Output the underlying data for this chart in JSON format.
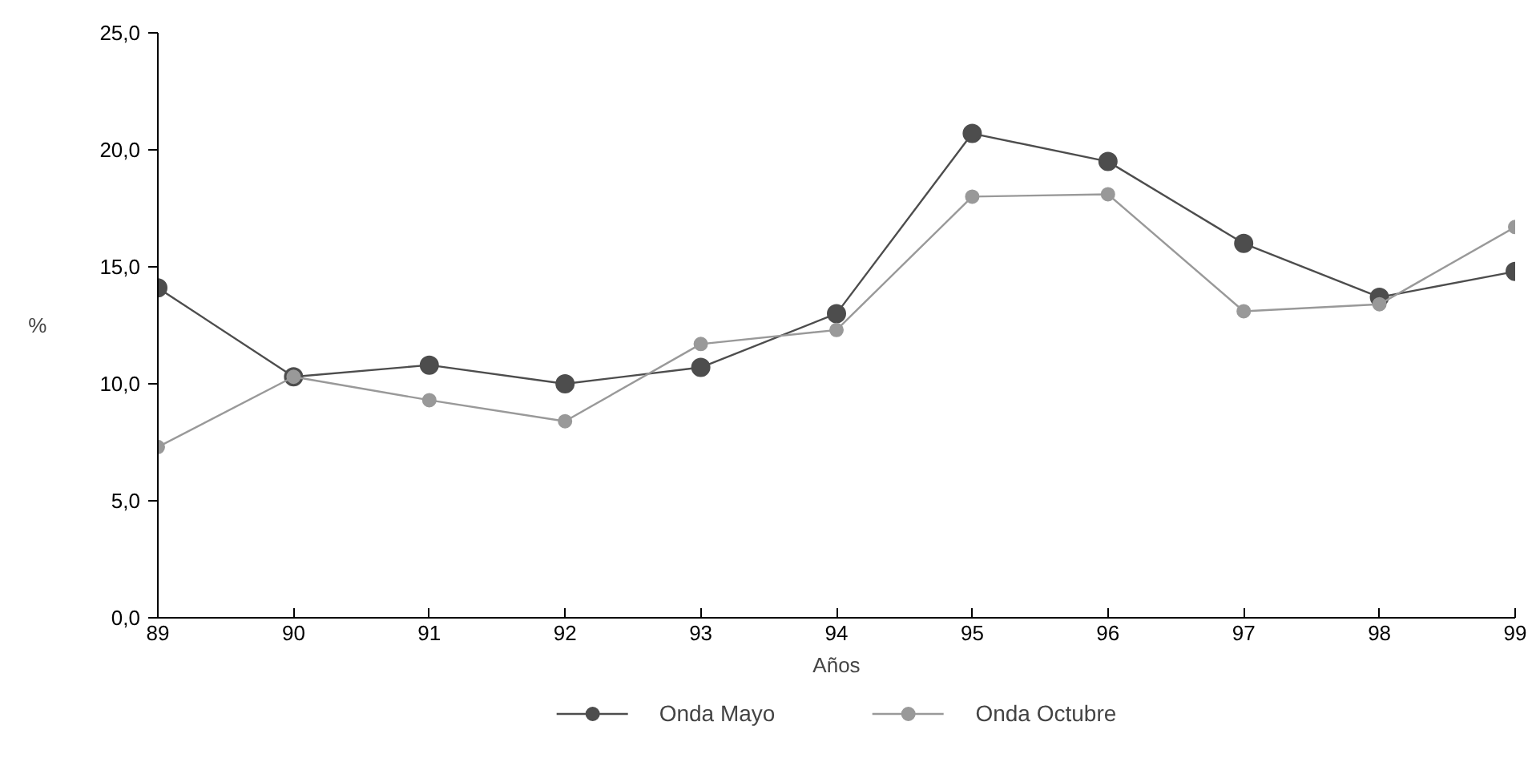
{
  "chart_data": {
    "type": "line",
    "xlabel": "Años",
    "ylabel": "%",
    "categories": [
      "89",
      "90",
      "91",
      "92",
      "93",
      "94",
      "95",
      "96",
      "97",
      "98",
      "99"
    ],
    "series": [
      {
        "name": "Onda Mayo",
        "color": "#4d4d4d",
        "values": [
          14.1,
          10.3,
          10.8,
          10.0,
          10.7,
          13.0,
          20.7,
          19.5,
          16.0,
          13.7,
          14.8
        ]
      },
      {
        "name": "Onda Octubre",
        "color": "#999999",
        "values": [
          7.3,
          10.3,
          9.3,
          8.4,
          11.7,
          12.3,
          18.0,
          18.1,
          13.1,
          13.4,
          16.7
        ]
      }
    ],
    "ylim": [
      0,
      25
    ],
    "yticks": [
      {
        "value": 0,
        "label": "0,0"
      },
      {
        "value": 5,
        "label": "5,0"
      },
      {
        "value": 10,
        "label": "10,0"
      },
      {
        "value": 15,
        "label": "15,0"
      },
      {
        "value": 20,
        "label": "20,0"
      },
      {
        "value": 25,
        "label": "25,0"
      }
    ],
    "grid": false,
    "legend": "bottom",
    "marker": "circle",
    "line_style": "solid"
  }
}
